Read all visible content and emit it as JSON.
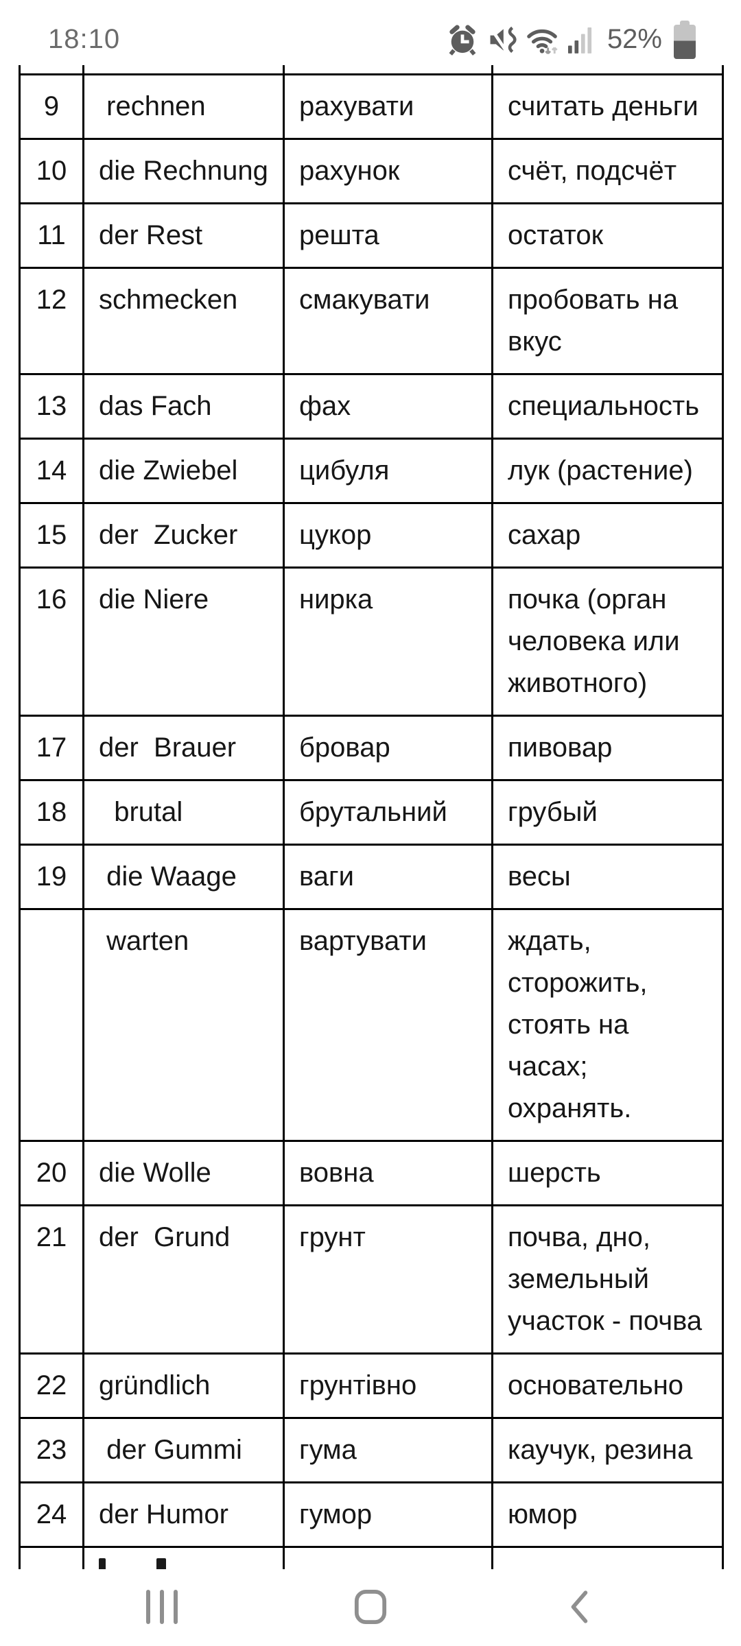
{
  "status_bar": {
    "time": "18:10",
    "battery_percent": "52%",
    "icons": [
      "alarm-icon",
      "mute-vibrate-icon",
      "wifi-icon",
      "signal-bars-icon",
      "battery-icon"
    ]
  },
  "table": {
    "columns": [
      "number",
      "german",
      "ukrainian",
      "russian"
    ],
    "rows": [
      {
        "num": "9",
        "de": " rechnen",
        "uk": "рахувати",
        "ru": "считать деньги"
      },
      {
        "num": "10",
        "de": "die Rechnung",
        "uk": "рахунок",
        "ru": "счёт, подсчёт"
      },
      {
        "num": "11",
        "de": "der Rest",
        "uk": "решта",
        "ru": "остаток"
      },
      {
        "num": "12",
        "de": "schmecken",
        "uk": "смакувати",
        "ru": "пробовать на вкус"
      },
      {
        "num": "13",
        "de": "das Fach",
        "uk": "фах",
        "ru": "специальность"
      },
      {
        "num": "14",
        "de": "die Zwiebel",
        "uk": "цибуля",
        "ru": "лук (растение)"
      },
      {
        "num": "15",
        "de": "der  Zucker",
        "uk": "цукор",
        "ru": "сахар"
      },
      {
        "num": "16",
        "de": "die Niere",
        "uk": "нирка",
        "ru": "почка (орган человека или животного)"
      },
      {
        "num": "17",
        "de": "der  Brauer",
        "uk": "бровар",
        "ru": "пивовар"
      },
      {
        "num": "18",
        "de": "  brutal",
        "uk": "брутальний",
        "ru": "грубый"
      },
      {
        "num": "19",
        "de": " die Waage",
        "uk": "ваги",
        "ru": "весы"
      },
      {
        "num": "",
        "de": " warten",
        "uk": "вартувати",
        "ru": "ждать, сторожить, стоять на часах; охранять."
      },
      {
        "num": "20",
        "de": "die Wolle",
        "uk": "вовна",
        "ru": "шерсть"
      },
      {
        "num": "21",
        "de": "der  Grund",
        "uk": "грунт",
        "ru": "почва, дно, земельный участок - почва"
      },
      {
        "num": "22",
        "de": "gründlich",
        "uk": "грунтівно",
        "ru": "основательно"
      },
      {
        "num": "23",
        "de": " der Gummi",
        "uk": "гума",
        "ru": "каучук, резина"
      },
      {
        "num": "24",
        "de": "der Humor",
        "uk": "гумор",
        "ru": "юмор"
      }
    ]
  },
  "nav_bar": {
    "buttons": [
      {
        "name": "recents",
        "icon": "recents-icon"
      },
      {
        "name": "home",
        "icon": "home-icon"
      },
      {
        "name": "back",
        "icon": "back-icon"
      }
    ]
  },
  "colors": {
    "table_border": "#000000",
    "table_text": "#161616",
    "status_icon_gray": "#5d5d5d",
    "status_text_gray": "#6b6b6b",
    "status_light_gray": "#c6c6c6",
    "nav_icon_gray": "#8f8f8f"
  }
}
